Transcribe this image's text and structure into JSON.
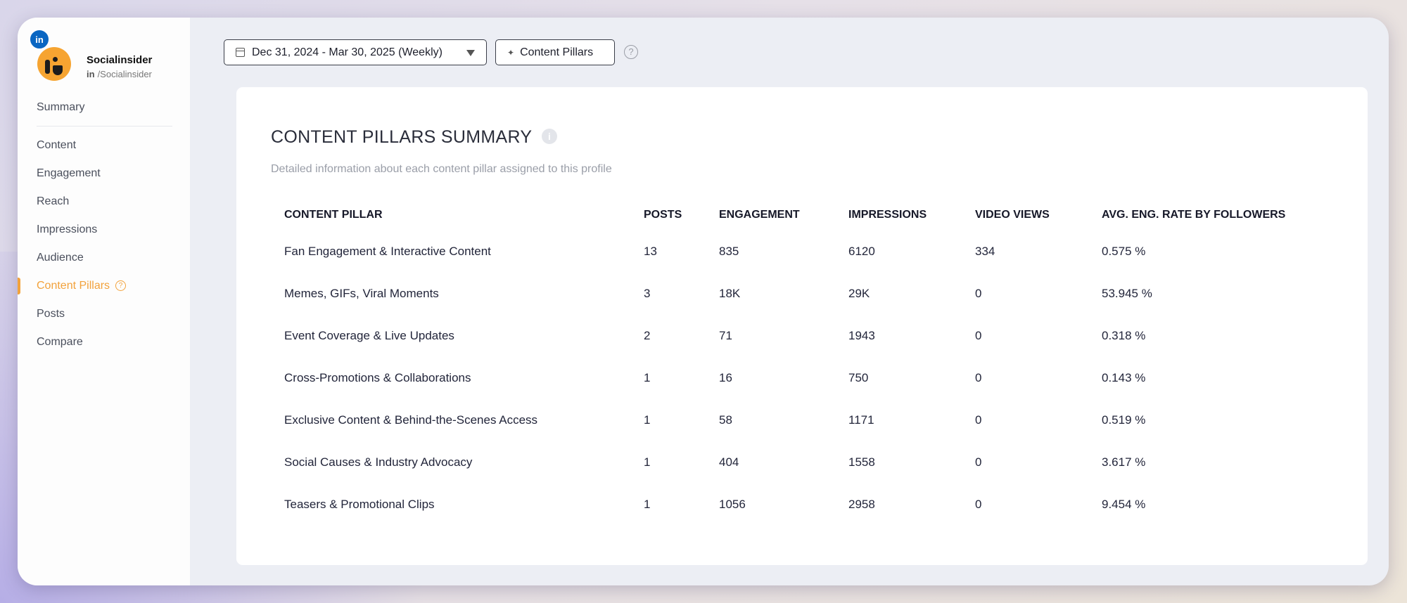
{
  "profile": {
    "network_badge": "in",
    "name": "Socialinsider",
    "handle_prefix": "in",
    "handle": "/Socialinsider"
  },
  "sidebar": {
    "items": [
      {
        "label": "Summary"
      },
      {
        "label": "Content"
      },
      {
        "label": "Engagement"
      },
      {
        "label": "Reach"
      },
      {
        "label": "Impressions"
      },
      {
        "label": "Audience"
      },
      {
        "label": "Content Pillars",
        "active": true
      },
      {
        "label": "Posts"
      },
      {
        "label": "Compare"
      }
    ]
  },
  "toolbar": {
    "date_range": "Dec 31, 2024 - Mar 30, 2025 (Weekly)",
    "pillars_label": "Content Pillars",
    "help": "?"
  },
  "card": {
    "title": "CONTENT PILLARS SUMMARY",
    "info": "i",
    "subtitle": "Detailed information about each content pillar assigned to this profile",
    "columns": [
      "CONTENT PILLAR",
      "POSTS",
      "ENGAGEMENT",
      "IMPRESSIONS",
      "VIDEO VIEWS",
      "AVG. ENG. RATE BY FOLLOWERS"
    ],
    "rows": [
      [
        "Fan Engagement & Interactive Content",
        "13",
        "835",
        "6120",
        "334",
        "0.575 %"
      ],
      [
        "Memes, GIFs, Viral Moments",
        "3",
        "18K",
        "29K",
        "0",
        "53.945 %"
      ],
      [
        "Event Coverage & Live Updates",
        "2",
        "71",
        "1943",
        "0",
        "0.318 %"
      ],
      [
        "Cross-Promotions & Collaborations",
        "1",
        "16",
        "750",
        "0",
        "0.143 %"
      ],
      [
        "Exclusive Content & Behind-the-Scenes Access",
        "1",
        "58",
        "1171",
        "0",
        "0.519 %"
      ],
      [
        "Social Causes & Industry Advocacy",
        "1",
        "404",
        "1558",
        "0",
        "3.617 %"
      ],
      [
        "Teasers & Promotional Clips",
        "1",
        "1056",
        "2958",
        "0",
        "9.454 %"
      ]
    ]
  },
  "colors": {
    "accent": "#f2a23b",
    "linkedin": "#0a66c2",
    "avatar": "#f6a431"
  }
}
